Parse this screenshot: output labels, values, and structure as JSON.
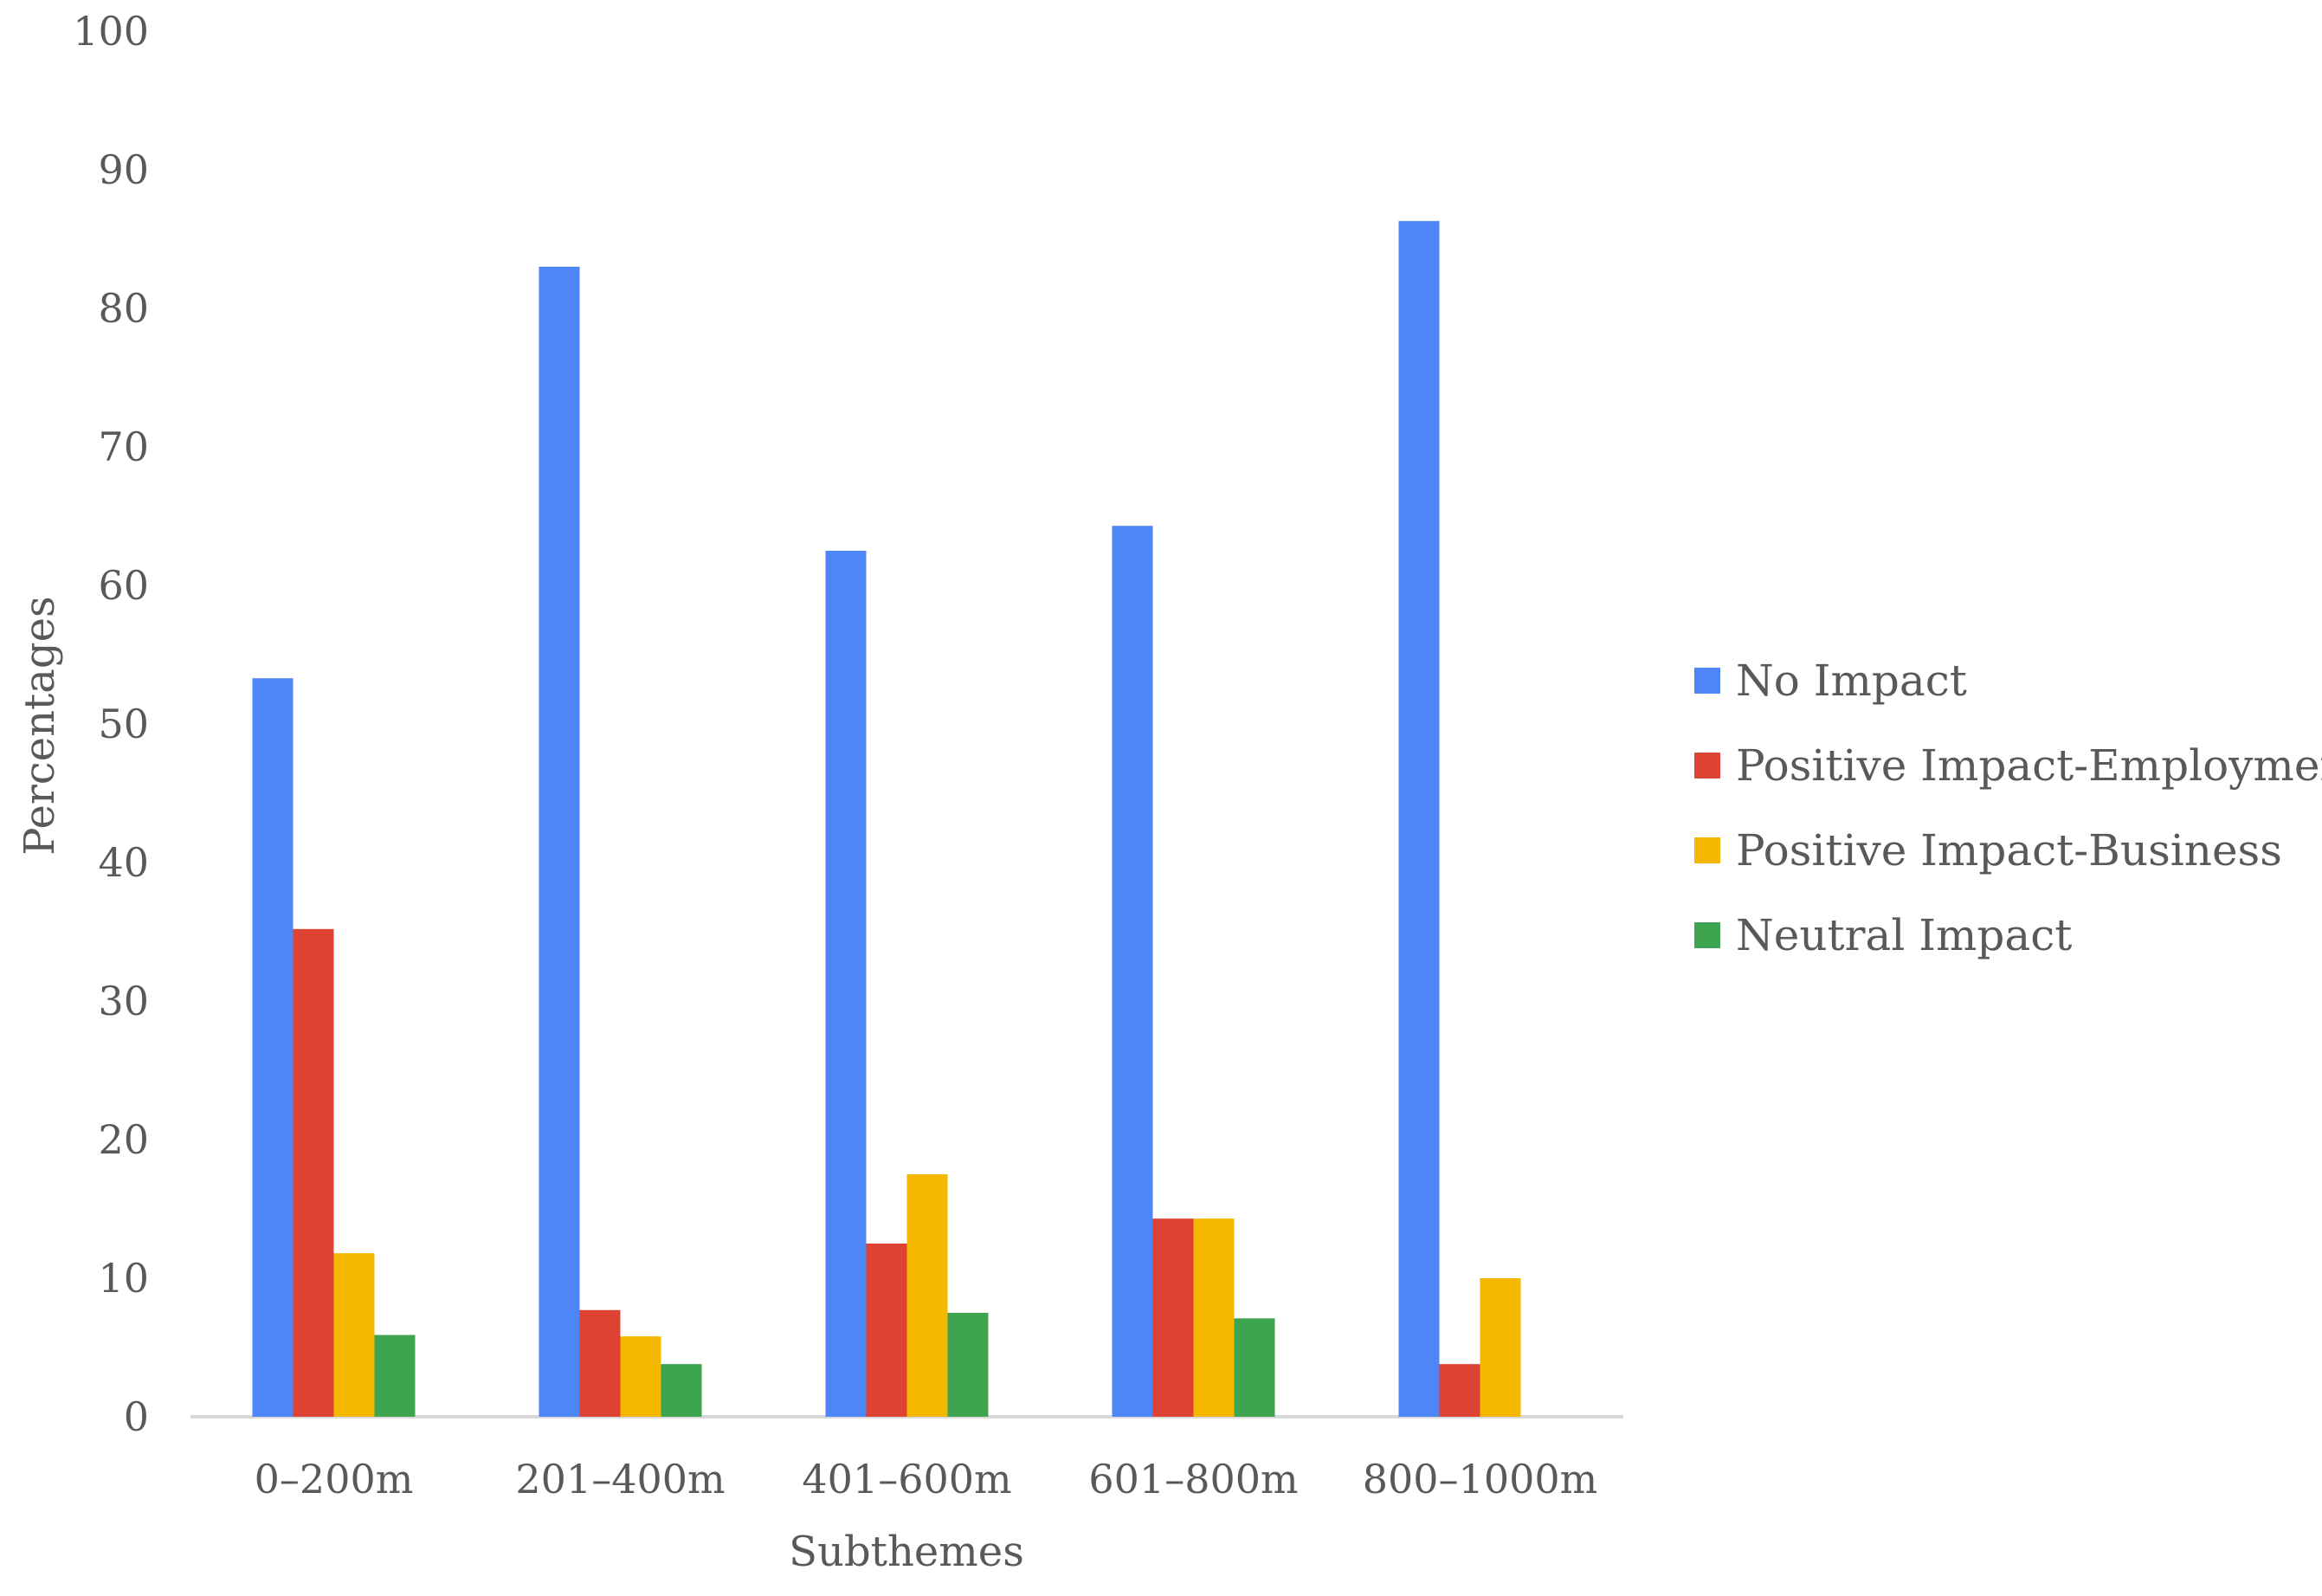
{
  "chart_data": {
    "type": "bar",
    "xlabel": "Subthemes",
    "ylabel": "Percentages",
    "ylim": [
      0,
      100
    ],
    "yticks": [
      0,
      10,
      20,
      30,
      40,
      50,
      60,
      70,
      80,
      90,
      100
    ],
    "grid": false,
    "legend_position": "right",
    "categories": [
      "0–200m",
      "201–400m",
      "401–600m",
      "601–800m",
      "800–1000m"
    ],
    "series": [
      {
        "name": "No Impact",
        "color": "#4f86f7",
        "values": [
          53.3,
          83.0,
          62.5,
          64.3,
          86.3
        ]
      },
      {
        "name": "Positive Impact-Employment",
        "color": "#de4232",
        "values": [
          35.2,
          7.7,
          12.5,
          14.3,
          3.8
        ]
      },
      {
        "name": "Positive Impact-Business",
        "color": "#f4b800",
        "values": [
          11.8,
          5.8,
          17.5,
          14.3,
          10.0
        ]
      },
      {
        "name": "Neutral Impact",
        "color": "#3fa450",
        "values": [
          5.9,
          3.8,
          7.5,
          7.1,
          0
        ]
      }
    ]
  }
}
